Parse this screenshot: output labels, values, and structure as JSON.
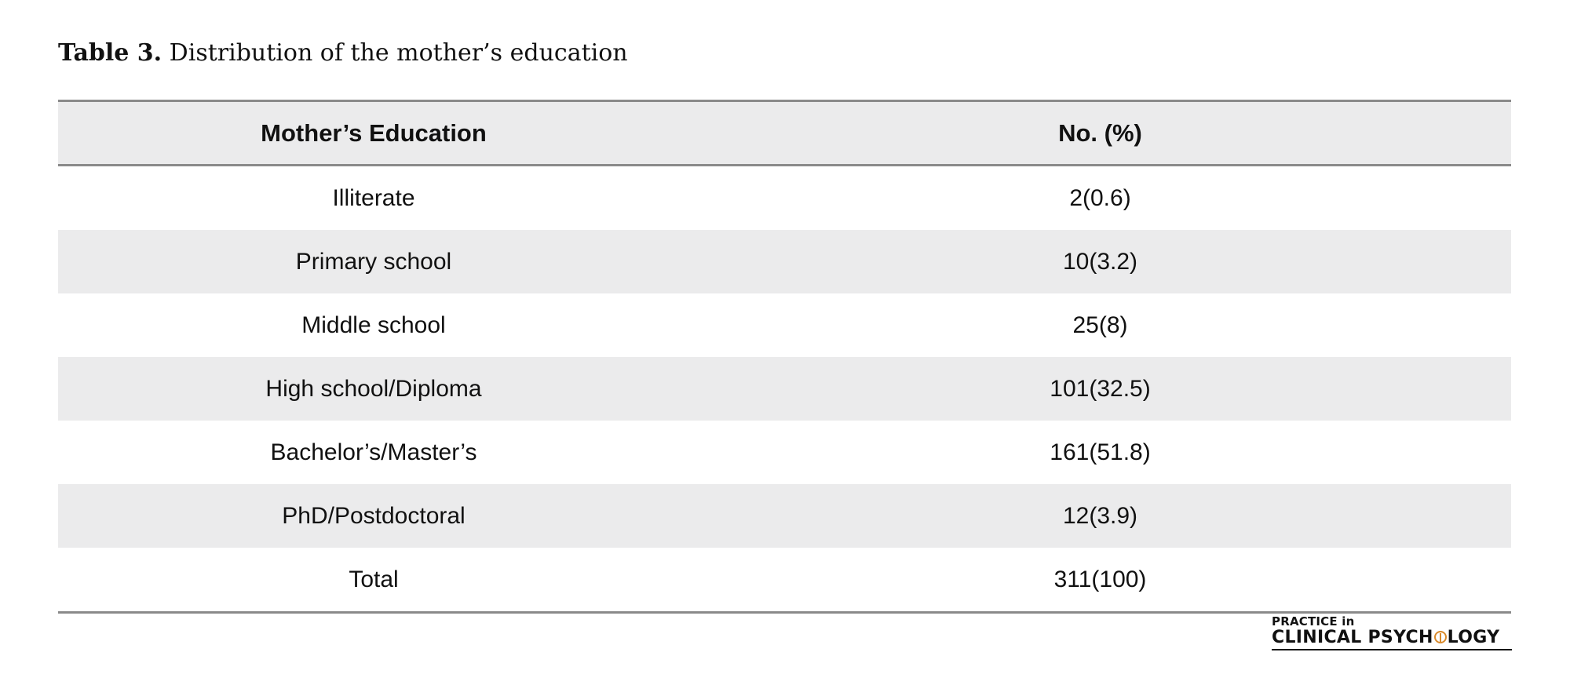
{
  "caption": {
    "label": "Table 3.",
    "text": "Distribution of the mother’s education"
  },
  "table": {
    "headers": {
      "education": "Mother’s Education",
      "count": "No. (%)"
    },
    "rows": [
      {
        "education": "Illiterate",
        "count": "2(0.6)"
      },
      {
        "education": "Primary school",
        "count": "10(3.2)"
      },
      {
        "education": "Middle school",
        "count": "25(8)"
      },
      {
        "education": "High school/Diploma",
        "count": "101(32.5)"
      },
      {
        "education": "Bachelor’s/Master’s",
        "count": "161(51.8)"
      },
      {
        "education": "PhD/Postdoctoral",
        "count": "12(3.9)"
      },
      {
        "education": "Total",
        "count": "311(100)"
      }
    ]
  },
  "logo": {
    "top": "PRACTICE in",
    "bottom_left": "CLINICAL PSYCH",
    "bottom_right": "LOGY"
  },
  "colors": {
    "header_bg": "#ebebec",
    "rule": "#8a8a8a",
    "logo_accent": "#d98a2b"
  }
}
